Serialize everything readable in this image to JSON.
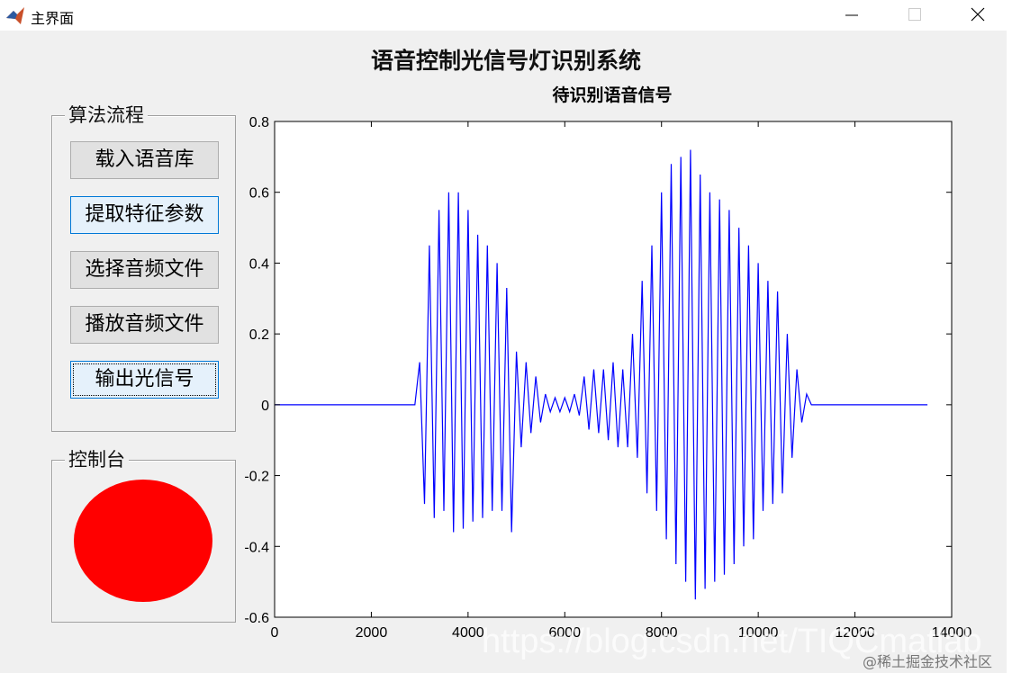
{
  "window": {
    "title": "主界面"
  },
  "app_title": "语音控制光信号灯识别系统",
  "panels": {
    "algorithm": {
      "title": "算法流程",
      "buttons": [
        "载入语音库",
        "提取特征参数",
        "选择音频文件",
        "播放音频文件",
        "输出光信号"
      ]
    },
    "console": {
      "title": "控制台",
      "lamp_color": "#ff0000"
    }
  },
  "chart_data": {
    "type": "line",
    "title": "待识别语音信号",
    "color": "#0000ff",
    "x": [
      0,
      2900,
      3000,
      3100,
      3200,
      3300,
      3400,
      3500,
      3600,
      3700,
      3800,
      3900,
      4000,
      4100,
      4200,
      4300,
      4400,
      4500,
      4600,
      4700,
      4800,
      4900,
      5000,
      5100,
      5200,
      5300,
      5400,
      5500,
      5600,
      5700,
      5800,
      5900,
      6000,
      6100,
      6200,
      6300,
      6400,
      6500,
      6600,
      6700,
      6800,
      6900,
      7000,
      7100,
      7200,
      7300,
      7400,
      7500,
      7600,
      7700,
      7800,
      7900,
      8000,
      8100,
      8200,
      8300,
      8400,
      8500,
      8600,
      8700,
      8800,
      8900,
      9000,
      9100,
      9200,
      9300,
      9400,
      9500,
      9600,
      9700,
      9800,
      9900,
      10000,
      10100,
      10200,
      10300,
      10400,
      10500,
      10600,
      10700,
      10800,
      10900,
      11000,
      11100,
      13500
    ],
    "values": [
      0,
      0,
      0.12,
      -0.28,
      0.45,
      -0.32,
      0.55,
      -0.3,
      0.6,
      -0.36,
      0.6,
      -0.35,
      0.55,
      -0.33,
      0.48,
      -0.32,
      0.45,
      -0.3,
      0.4,
      -0.3,
      0.33,
      -0.36,
      0.15,
      -0.12,
      0.12,
      -0.08,
      0.08,
      -0.05,
      0.03,
      -0.02,
      0.02,
      -0.02,
      0.02,
      -0.02,
      0.03,
      -0.03,
      0.08,
      -0.07,
      0.1,
      -0.08,
      0.1,
      -0.1,
      0.12,
      -0.12,
      0.1,
      -0.12,
      0.2,
      -0.15,
      0.35,
      -0.25,
      0.45,
      -0.3,
      0.6,
      -0.38,
      0.68,
      -0.45,
      0.7,
      -0.5,
      0.72,
      -0.55,
      0.65,
      -0.52,
      0.6,
      -0.5,
      0.58,
      -0.48,
      0.55,
      -0.45,
      0.5,
      -0.4,
      0.45,
      -0.38,
      0.4,
      -0.3,
      0.35,
      -0.28,
      0.32,
      -0.25,
      0.2,
      -0.15,
      0.1,
      -0.05,
      0.03,
      0,
      0
    ],
    "xlim": [
      0,
      14000
    ],
    "xticks": [
      0,
      2000,
      4000,
      6000,
      8000,
      10000,
      12000,
      14000
    ],
    "ylim": [
      -0.6,
      0.8
    ],
    "yticks": [
      -0.6,
      -0.4,
      -0.2,
      0,
      0.2,
      0.4,
      0.6,
      0.8
    ]
  },
  "watermark": [
    "https://blog.csdn.net/TIQCmatlab",
    "@稀土掘金技术社区"
  ]
}
